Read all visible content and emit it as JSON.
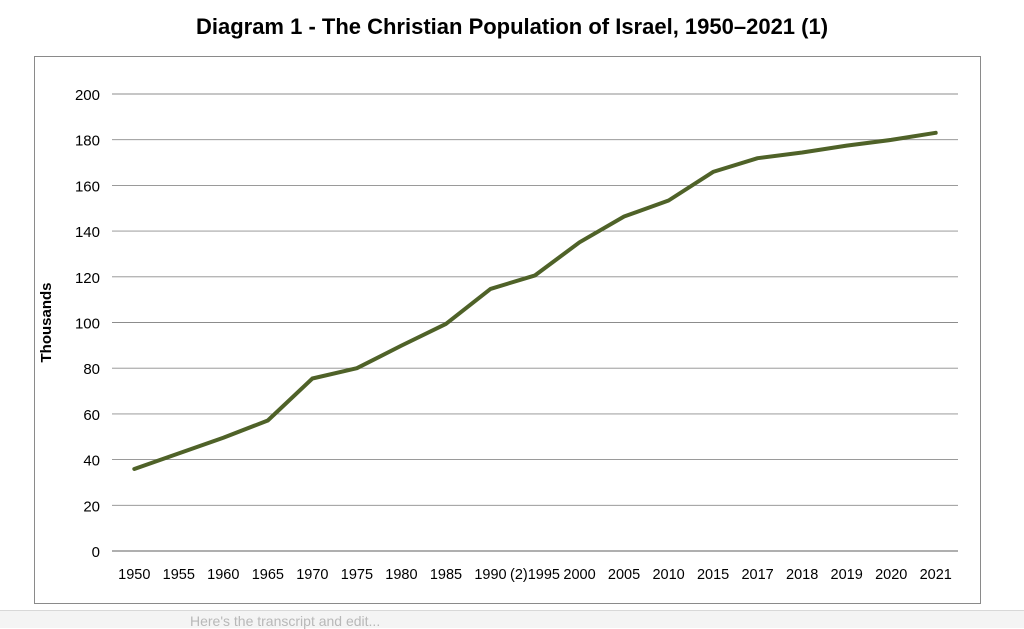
{
  "chart_data": {
    "type": "line",
    "title": "Diagram 1 - The Christian Population of Israel, 1950–2021 (1)",
    "xlabel": "",
    "ylabel": "Thousands",
    "categories": [
      "1950",
      "1955",
      "1960",
      "1965",
      "1970",
      "1975",
      "1980",
      "1985",
      "1990",
      "(2)1995",
      "2000",
      "2005",
      "2010",
      "2015",
      "2017",
      "2018",
      "2019",
      "2020",
      "2021"
    ],
    "yticks": [
      "0",
      "20",
      "40",
      "60",
      "80",
      "100",
      "120",
      "140",
      "160",
      "180",
      "200"
    ],
    "ylim": [
      0,
      200
    ],
    "grid": true,
    "legend": "none",
    "series": [
      {
        "values": [
          35.9,
          42.7,
          49.6,
          57.1,
          75.5,
          80.0,
          89.9,
          99.4,
          114.7,
          120.6,
          135.1,
          146.4,
          153.4,
          165.9,
          171.9,
          174.4,
          177.4,
          179.9,
          183.0
        ],
        "color": "#4f6228"
      }
    ],
    "colors": {
      "line": "#4f6228",
      "grid": "#8c8c8c",
      "axis": "#7f7f7f",
      "text": "#000000"
    }
  },
  "page": {
    "footer_fragment": "Here's the transcript and edit..."
  }
}
